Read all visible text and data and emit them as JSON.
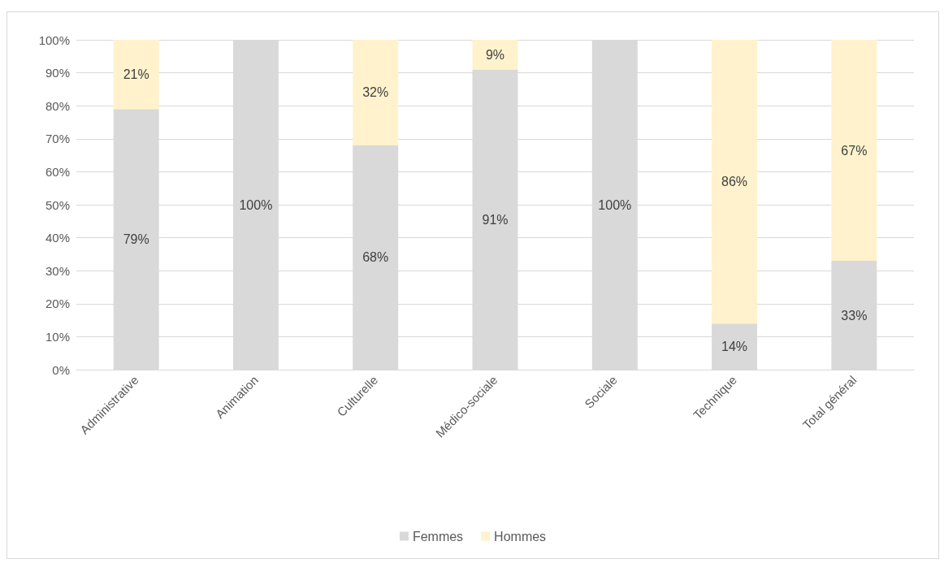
{
  "chart_data": {
    "type": "bar",
    "stacked": true,
    "categories": [
      "Administrative",
      "Animation",
      "Culturelle",
      "Médico-sociale",
      "Sociale",
      "Technique",
      "Total général"
    ],
    "series": [
      {
        "name": "Femmes",
        "color": "#d9d9d9",
        "values": [
          79,
          100,
          68,
          91,
          100,
          14,
          33
        ],
        "value_labels": [
          "79%",
          "100%",
          "68%",
          "91%",
          "100%",
          "14%",
          "33%"
        ]
      },
      {
        "name": "Hommes",
        "color": "#fff2cc",
        "values": [
          21,
          0,
          32,
          9,
          0,
          86,
          67
        ],
        "value_labels": [
          "21%",
          null,
          "32%",
          "9%",
          null,
          "86%",
          "67%"
        ]
      }
    ],
    "ylim": [
      0,
      100
    ],
    "yticks": [
      {
        "value": 0,
        "label": "0%"
      },
      {
        "value": 10,
        "label": "10%"
      },
      {
        "value": 20,
        "label": "20%"
      },
      {
        "value": 30,
        "label": "30%"
      },
      {
        "value": 40,
        "label": "40%"
      },
      {
        "value": 50,
        "label": "50%"
      },
      {
        "value": 60,
        "label": "60%"
      },
      {
        "value": 70,
        "label": "70%"
      },
      {
        "value": 80,
        "label": "80%"
      },
      {
        "value": 90,
        "label": "90%"
      },
      {
        "value": 100,
        "label": "100%"
      }
    ],
    "grid": "y",
    "legend": "bottom"
  }
}
